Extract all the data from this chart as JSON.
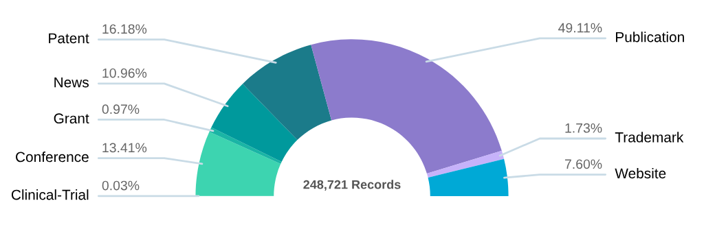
{
  "chart_data": {
    "type": "donut",
    "categories": [
      "Clinical-Trial",
      "Conference",
      "Grant",
      "News",
      "Patent",
      "Publication",
      "Trademark",
      "Website"
    ],
    "values": [
      0.03,
      13.41,
      0.97,
      10.96,
      16.18,
      49.11,
      1.73,
      7.6
    ],
    "value_labels": [
      "0.03%",
      "13.41%",
      "0.97%",
      "10.96%",
      "16.18%",
      "49.11%",
      "1.73%",
      "7.60%"
    ],
    "colors": [
      "#3dd6b0",
      "#3dd4b0",
      "#1ab5a5",
      "#00999c",
      "#1b7b8a",
      "#8c7bcc",
      "#c6b2fa",
      "#00a9d6"
    ],
    "annotations": [
      "248,721 Records"
    ]
  }
}
